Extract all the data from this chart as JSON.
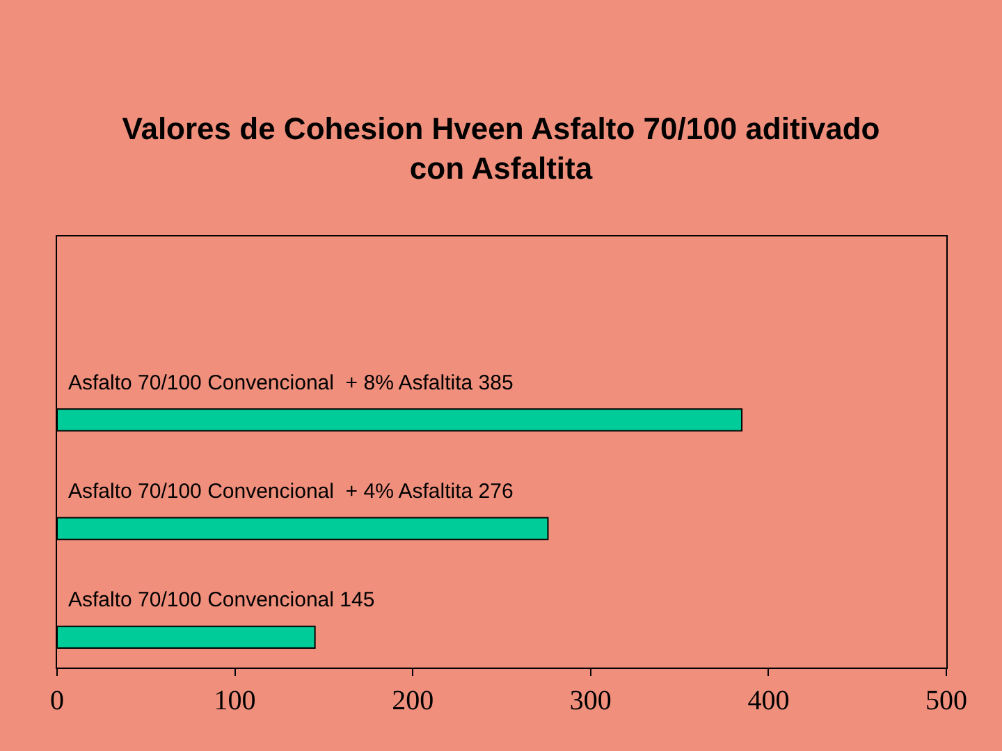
{
  "chart_data": {
    "type": "bar",
    "orientation": "horizontal",
    "title": "Valores de Cohesion Hveen Asfalto 70/100 aditivado con Asfaltita",
    "categories": [
      "Asfalto 70/100 Convencional  + 8% Asfaltita 385",
      "Asfalto 70/100 Convencional  + 4% Asfaltita 276",
      "Asfalto 70/100 Convencional 145"
    ],
    "values": [
      385,
      276,
      145
    ],
    "color": "#00cc99",
    "xlim": [
      0,
      500
    ],
    "xticks": [
      0,
      100,
      200,
      300,
      400,
      500
    ],
    "tick_labels": "x",
    "grid": false,
    "legend": false
  }
}
